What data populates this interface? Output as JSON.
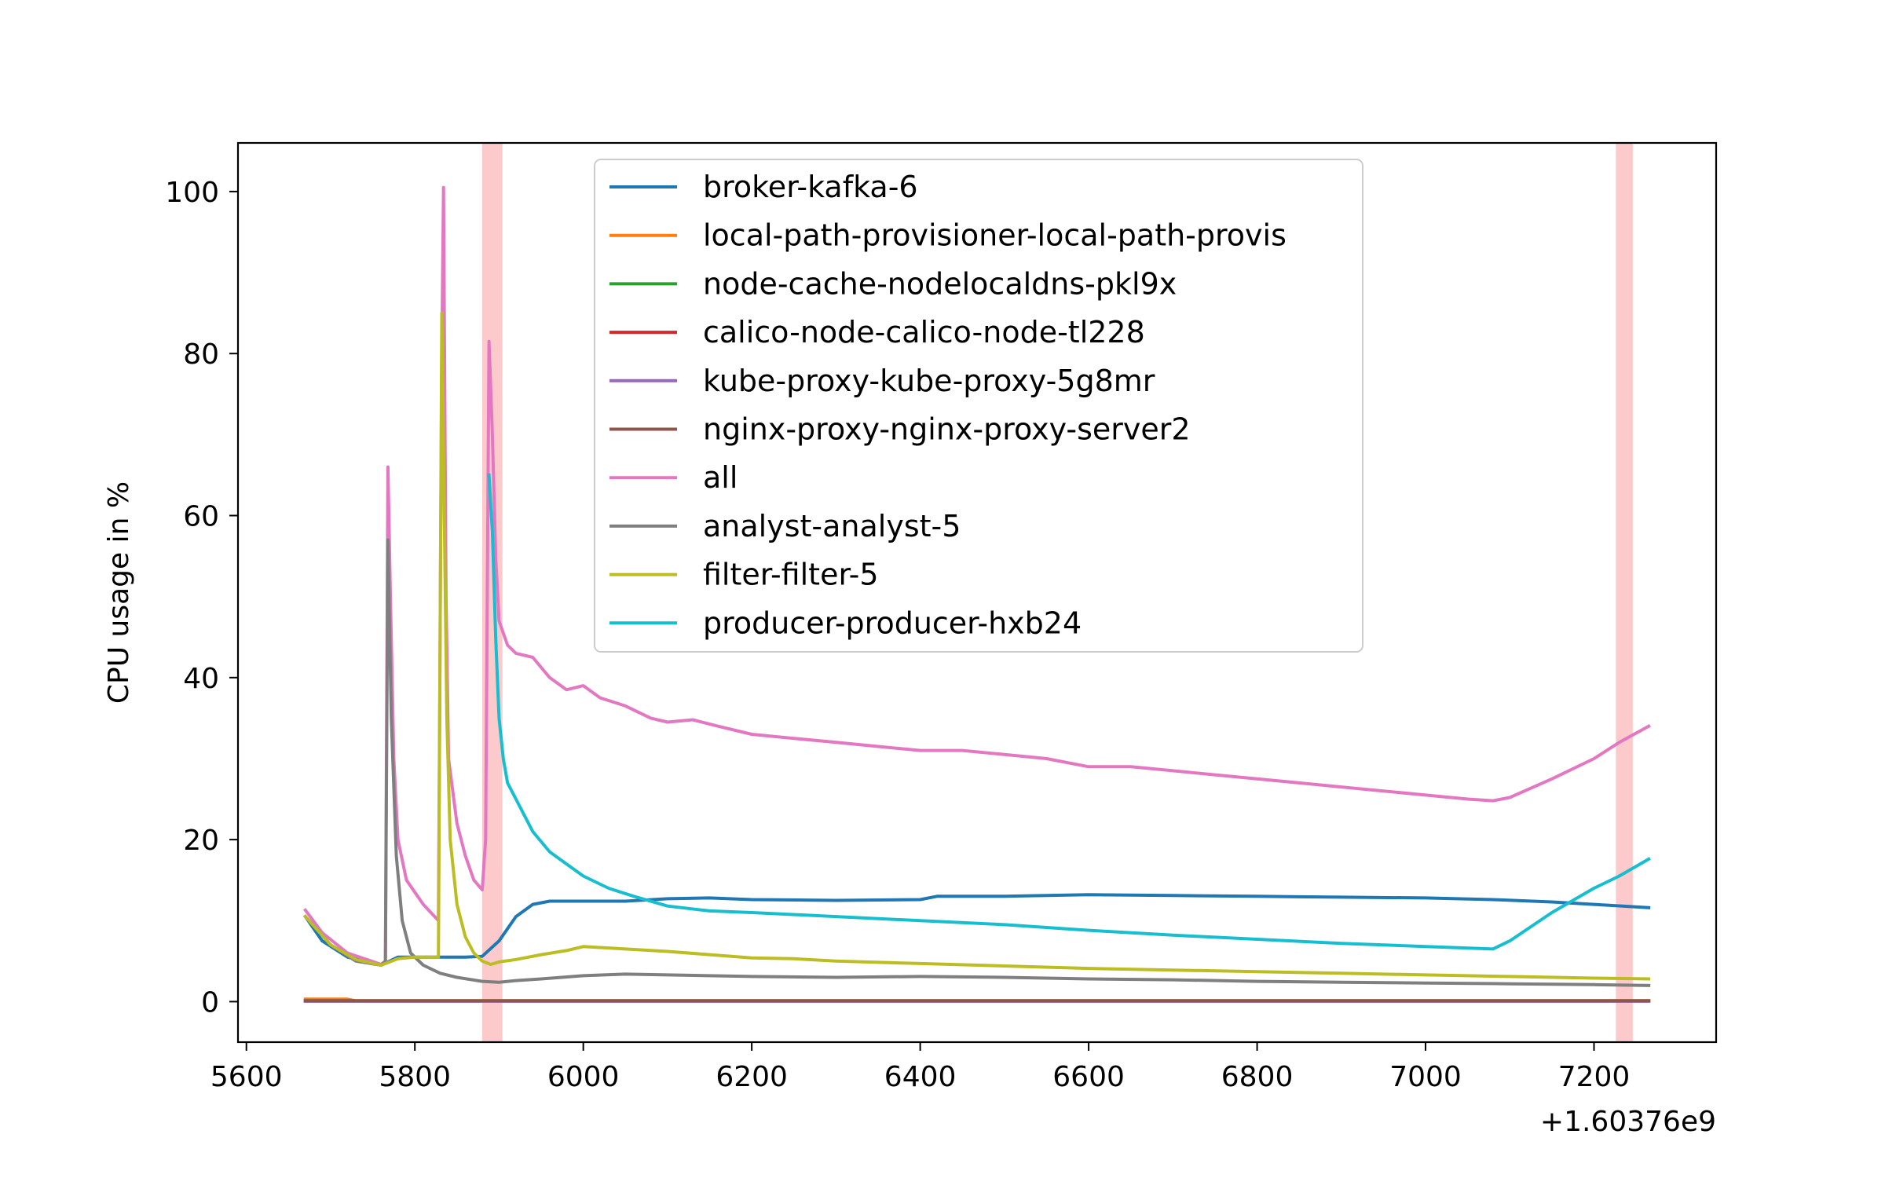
{
  "chart_data": {
    "type": "line",
    "title": "",
    "xlabel": "",
    "ylabel": "CPU usage in %",
    "x_offset_label": "+1.60376e9",
    "xlim": [
      5590,
      7345
    ],
    "ylim": [
      -5,
      106
    ],
    "xticks": [
      5600,
      5800,
      6000,
      6200,
      6400,
      6600,
      6800,
      7000,
      7200
    ],
    "yticks": [
      0,
      20,
      40,
      60,
      80,
      100
    ],
    "grid": false,
    "legend_placement": "top-center",
    "highlight_bands": [
      {
        "x0": 5880,
        "x1": 5904,
        "color": "#fccaca"
      },
      {
        "x0": 7226,
        "x1": 7246,
        "color": "#fccaca"
      }
    ],
    "series": [
      {
        "name": "broker-kafka-6",
        "color": "#1f77b4",
        "points": [
          [
            5670,
            10.5
          ],
          [
            5690,
            7.5
          ],
          [
            5720,
            5.5
          ],
          [
            5760,
            4.5
          ],
          [
            5780,
            5.5
          ],
          [
            5820,
            5.5
          ],
          [
            5860,
            5.5
          ],
          [
            5880,
            5.6
          ],
          [
            5900,
            7.5
          ],
          [
            5920,
            10.5
          ],
          [
            5940,
            12.0
          ],
          [
            5960,
            12.4
          ],
          [
            6050,
            12.4
          ],
          [
            6100,
            12.7
          ],
          [
            6150,
            12.8
          ],
          [
            6200,
            12.6
          ],
          [
            6300,
            12.5
          ],
          [
            6400,
            12.6
          ],
          [
            6420,
            13.0
          ],
          [
            6500,
            13.0
          ],
          [
            6600,
            13.2
          ],
          [
            6700,
            13.1
          ],
          [
            6800,
            13.0
          ],
          [
            6900,
            12.9
          ],
          [
            7000,
            12.8
          ],
          [
            7080,
            12.6
          ],
          [
            7150,
            12.3
          ],
          [
            7200,
            12.0
          ],
          [
            7265,
            11.6
          ]
        ]
      },
      {
        "name": "local-path-provisioner-local-path-provis",
        "color": "#ff7f0e",
        "points": [
          [
            5670,
            0.3
          ],
          [
            5720,
            0.3
          ],
          [
            5730,
            0.1
          ],
          [
            7265,
            0.1
          ]
        ]
      },
      {
        "name": "node-cache-nodelocaldns-pkl9x",
        "color": "#2ca02c",
        "points": [
          [
            5670,
            0.1
          ],
          [
            7265,
            0.1
          ]
        ]
      },
      {
        "name": "calico-node-calico-node-tl228",
        "color": "#d62728",
        "points": [
          [
            5670,
            0.1
          ],
          [
            7265,
            0.1
          ]
        ]
      },
      {
        "name": "kube-proxy-kube-proxy-5g8mr",
        "color": "#9467bd",
        "points": [
          [
            5670,
            0.05
          ],
          [
            7265,
            0.05
          ]
        ]
      },
      {
        "name": "nginx-proxy-nginx-proxy-server2",
        "color": "#8c564b",
        "points": [
          [
            5670,
            0.1
          ],
          [
            7265,
            0.1
          ]
        ]
      },
      {
        "name": "all",
        "color": "#e377c2",
        "points": [
          [
            5670,
            11.3
          ],
          [
            5690,
            8.5
          ],
          [
            5720,
            6.0
          ],
          [
            5760,
            4.6
          ],
          [
            5765,
            5.0
          ],
          [
            5768,
            66.0
          ],
          [
            5771,
            50.0
          ],
          [
            5775,
            30.0
          ],
          [
            5780,
            20.0
          ],
          [
            5790,
            15.0
          ],
          [
            5810,
            12.0
          ],
          [
            5828,
            10.0
          ],
          [
            5832,
            80.0
          ],
          [
            5834,
            100.5
          ],
          [
            5837,
            50.0
          ],
          [
            5840,
            30.0
          ],
          [
            5850,
            22.0
          ],
          [
            5860,
            18.0
          ],
          [
            5870,
            15.0
          ],
          [
            5880,
            13.8
          ],
          [
            5884,
            20.0
          ],
          [
            5888,
            81.5
          ],
          [
            5892,
            70.0
          ],
          [
            5896,
            55.0
          ],
          [
            5900,
            47.0
          ],
          [
            5910,
            44.0
          ],
          [
            5920,
            43.0
          ],
          [
            5940,
            42.5
          ],
          [
            5960,
            40.0
          ],
          [
            5980,
            38.5
          ],
          [
            6000,
            39.0
          ],
          [
            6020,
            37.5
          ],
          [
            6050,
            36.5
          ],
          [
            6080,
            35.0
          ],
          [
            6100,
            34.5
          ],
          [
            6130,
            34.8
          ],
          [
            6160,
            34.0
          ],
          [
            6200,
            33.0
          ],
          [
            6250,
            32.5
          ],
          [
            6300,
            32.0
          ],
          [
            6350,
            31.5
          ],
          [
            6400,
            31.0
          ],
          [
            6450,
            31.0
          ],
          [
            6500,
            30.5
          ],
          [
            6550,
            30.0
          ],
          [
            6600,
            29.0
          ],
          [
            6650,
            29.0
          ],
          [
            6700,
            28.5
          ],
          [
            6750,
            28.0
          ],
          [
            6800,
            27.5
          ],
          [
            6850,
            27.0
          ],
          [
            6900,
            26.5
          ],
          [
            6950,
            26.0
          ],
          [
            7000,
            25.5
          ],
          [
            7050,
            25.0
          ],
          [
            7080,
            24.8
          ],
          [
            7100,
            25.2
          ],
          [
            7150,
            27.5
          ],
          [
            7200,
            30.0
          ],
          [
            7230,
            32.0
          ],
          [
            7265,
            34.0
          ]
        ]
      },
      {
        "name": "analyst-analyst-5",
        "color": "#7f7f7f",
        "points": [
          [
            5670,
            10.5
          ],
          [
            5700,
            7.0
          ],
          [
            5730,
            5.0
          ],
          [
            5760,
            4.5
          ],
          [
            5765,
            5.0
          ],
          [
            5768,
            57.0
          ],
          [
            5772,
            35.0
          ],
          [
            5778,
            18.0
          ],
          [
            5785,
            10.0
          ],
          [
            5795,
            6.0
          ],
          [
            5810,
            4.5
          ],
          [
            5830,
            3.5
          ],
          [
            5850,
            3.0
          ],
          [
            5880,
            2.5
          ],
          [
            5900,
            2.4
          ],
          [
            5920,
            2.6
          ],
          [
            5950,
            2.8
          ],
          [
            6000,
            3.2
          ],
          [
            6050,
            3.4
          ],
          [
            6100,
            3.3
          ],
          [
            6200,
            3.1
          ],
          [
            6300,
            3.0
          ],
          [
            6400,
            3.1
          ],
          [
            6500,
            3.0
          ],
          [
            6600,
            2.8
          ],
          [
            6700,
            2.7
          ],
          [
            6800,
            2.5
          ],
          [
            6900,
            2.4
          ],
          [
            7000,
            2.3
          ],
          [
            7100,
            2.2
          ],
          [
            7200,
            2.1
          ],
          [
            7265,
            2.0
          ]
        ]
      },
      {
        "name": "filter-filter-5",
        "color": "#bcbd22",
        "points": [
          [
            5670,
            10.5
          ],
          [
            5700,
            7.0
          ],
          [
            5730,
            5.2
          ],
          [
            5760,
            4.5
          ],
          [
            5780,
            5.3
          ],
          [
            5800,
            5.5
          ],
          [
            5828,
            5.5
          ],
          [
            5832,
            85.0
          ],
          [
            5835,
            60.0
          ],
          [
            5838,
            35.0
          ],
          [
            5842,
            20.0
          ],
          [
            5850,
            12.0
          ],
          [
            5860,
            8.0
          ],
          [
            5870,
            6.0
          ],
          [
            5880,
            5.0
          ],
          [
            5890,
            4.6
          ],
          [
            5900,
            4.9
          ],
          [
            5920,
            5.2
          ],
          [
            5950,
            5.8
          ],
          [
            5980,
            6.3
          ],
          [
            6000,
            6.8
          ],
          [
            6050,
            6.5
          ],
          [
            6100,
            6.2
          ],
          [
            6150,
            5.8
          ],
          [
            6200,
            5.4
          ],
          [
            6250,
            5.3
          ],
          [
            6300,
            5.0
          ],
          [
            6400,
            4.7
          ],
          [
            6500,
            4.4
          ],
          [
            6600,
            4.1
          ],
          [
            6700,
            3.9
          ],
          [
            6800,
            3.7
          ],
          [
            6900,
            3.5
          ],
          [
            7000,
            3.3
          ],
          [
            7100,
            3.1
          ],
          [
            7200,
            2.9
          ],
          [
            7265,
            2.8
          ]
        ]
      },
      {
        "name": "producer-producer-hxb24",
        "color": "#17becf",
        "points": [
          [
            5888,
            65.0
          ],
          [
            5892,
            58.0
          ],
          [
            5896,
            45.0
          ],
          [
            5900,
            35.0
          ],
          [
            5905,
            30.0
          ],
          [
            5910,
            27.0
          ],
          [
            5920,
            25.0
          ],
          [
            5930,
            23.0
          ],
          [
            5940,
            21.0
          ],
          [
            5960,
            18.5
          ],
          [
            5980,
            17.0
          ],
          [
            6000,
            15.5
          ],
          [
            6030,
            14.0
          ],
          [
            6060,
            13.0
          ],
          [
            6100,
            11.8
          ],
          [
            6150,
            11.2
          ],
          [
            6200,
            11.0
          ],
          [
            6300,
            10.5
          ],
          [
            6400,
            10.0
          ],
          [
            6500,
            9.5
          ],
          [
            6600,
            8.8
          ],
          [
            6700,
            8.2
          ],
          [
            6800,
            7.7
          ],
          [
            6900,
            7.2
          ],
          [
            7000,
            6.8
          ],
          [
            7080,
            6.5
          ],
          [
            7100,
            7.5
          ],
          [
            7150,
            11.0
          ],
          [
            7200,
            14.0
          ],
          [
            7230,
            15.5
          ],
          [
            7265,
            17.6
          ]
        ]
      }
    ]
  }
}
